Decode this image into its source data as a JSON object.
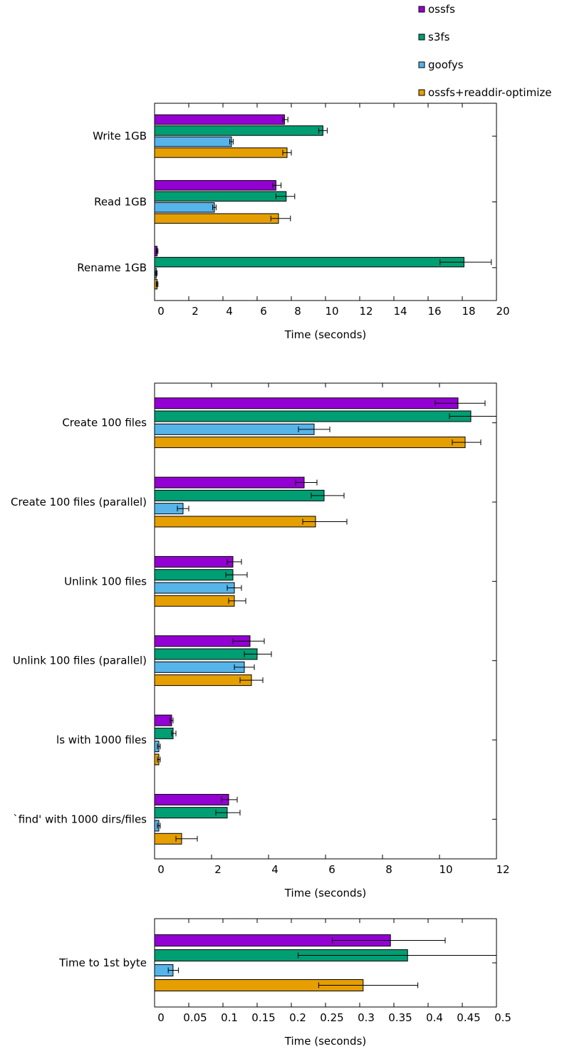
{
  "series": [
    {
      "name": "ossfs",
      "color": "#9400d3"
    },
    {
      "name": "s3fs",
      "color": "#009e73"
    },
    {
      "name": "goofys",
      "color": "#56b4e9"
    },
    {
      "name": "ossfs+readdir-optimize",
      "color": "#e69f00"
    }
  ],
  "chart_data": [
    {
      "type": "bar",
      "orientation": "horizontal",
      "xlabel": "Time (seconds)",
      "xlim": [
        0,
        20
      ],
      "xtick_step": 2,
      "categories": [
        "Write 1GB",
        "Read 1GB",
        "Rename 1GB"
      ],
      "series": [
        {
          "name": "ossfs",
          "values": [
            7.6,
            7.1,
            0.15
          ],
          "errors": [
            [
              7.5,
              7.8
            ],
            [
              6.9,
              7.4
            ],
            [
              0.1,
              0.2
            ]
          ]
        },
        {
          "name": "s3fs",
          "values": [
            9.85,
            7.7,
            18.1
          ],
          "errors": [
            [
              9.6,
              10.1
            ],
            [
              7.1,
              8.2
            ],
            [
              16.7,
              19.7
            ]
          ]
        },
        {
          "name": "goofys",
          "values": [
            4.5,
            3.5,
            0.1
          ],
          "errors": [
            [
              4.4,
              4.6
            ],
            [
              3.4,
              3.6
            ],
            [
              0.05,
              0.15
            ]
          ]
        },
        {
          "name": "ossfs+readdir-optimize",
          "values": [
            7.75,
            7.25,
            0.15
          ],
          "errors": [
            [
              7.5,
              8.0
            ],
            [
              6.8,
              7.95
            ],
            [
              0.1,
              0.2
            ]
          ]
        }
      ]
    },
    {
      "type": "bar",
      "orientation": "horizontal",
      "xlabel": "Time (seconds)",
      "xlim": [
        0,
        12
      ],
      "xtick_step": 2,
      "categories": [
        "Create 100 files",
        "Create 100 files (parallel)",
        "Unlink 100 files",
        "Unlink 100 files (parallel)",
        "ls with 1000 files",
        "`find' with 1000 dirs/files"
      ],
      "series": [
        {
          "name": "ossfs",
          "values": [
            10.65,
            5.25,
            2.75,
            3.35,
            0.6,
            2.6
          ],
          "errors": [
            [
              9.85,
              11.6
            ],
            [
              4.95,
              5.7
            ],
            [
              2.55,
              3.05
            ],
            [
              2.75,
              3.85
            ],
            [
              0.55,
              0.65
            ],
            [
              2.35,
              2.9
            ]
          ]
        },
        {
          "name": "s3fs",
          "values": [
            11.1,
            5.95,
            2.75,
            3.6,
            0.65,
            2.55
          ],
          "errors": [
            [
              10.35,
              12.1
            ],
            [
              5.5,
              6.65
            ],
            [
              2.5,
              3.25
            ],
            [
              3.15,
              4.1
            ],
            [
              0.6,
              0.75
            ],
            [
              2.15,
              3.0
            ]
          ]
        },
        {
          "name": "goofys",
          "values": [
            5.6,
            1.0,
            2.8,
            3.15,
            0.15,
            0.15
          ],
          "errors": [
            [
              5.05,
              6.15
            ],
            [
              0.8,
              1.2
            ],
            [
              2.55,
              3.05
            ],
            [
              2.8,
              3.5
            ],
            [
              0.1,
              0.2
            ],
            [
              0.1,
              0.2
            ]
          ]
        },
        {
          "name": "ossfs+readdir-optimize",
          "values": [
            10.9,
            5.65,
            2.8,
            3.4,
            0.15,
            0.95
          ],
          "errors": [
            [
              10.45,
              11.45
            ],
            [
              5.2,
              6.75
            ],
            [
              2.6,
              3.2
            ],
            [
              3.0,
              3.8
            ],
            [
              0.1,
              0.2
            ],
            [
              0.75,
              1.5
            ]
          ]
        }
      ]
    },
    {
      "type": "bar",
      "orientation": "horizontal",
      "xlabel": "Time (seconds)",
      "xlim": [
        0,
        0.5
      ],
      "xtick_step": 0.05,
      "categories": [
        "Time to 1st byte"
      ],
      "series": [
        {
          "name": "ossfs",
          "values": [
            0.345
          ],
          "errors": [
            [
              0.26,
              0.425
            ]
          ]
        },
        {
          "name": "s3fs",
          "values": [
            0.37
          ],
          "errors": [
            [
              0.21,
              0.5
            ]
          ]
        },
        {
          "name": "goofys",
          "values": [
            0.027
          ],
          "errors": [
            [
              0.02,
              0.035
            ]
          ]
        },
        {
          "name": "ossfs+readdir-optimize",
          "values": [
            0.305
          ],
          "errors": [
            [
              0.24,
              0.385
            ]
          ]
        }
      ]
    }
  ]
}
